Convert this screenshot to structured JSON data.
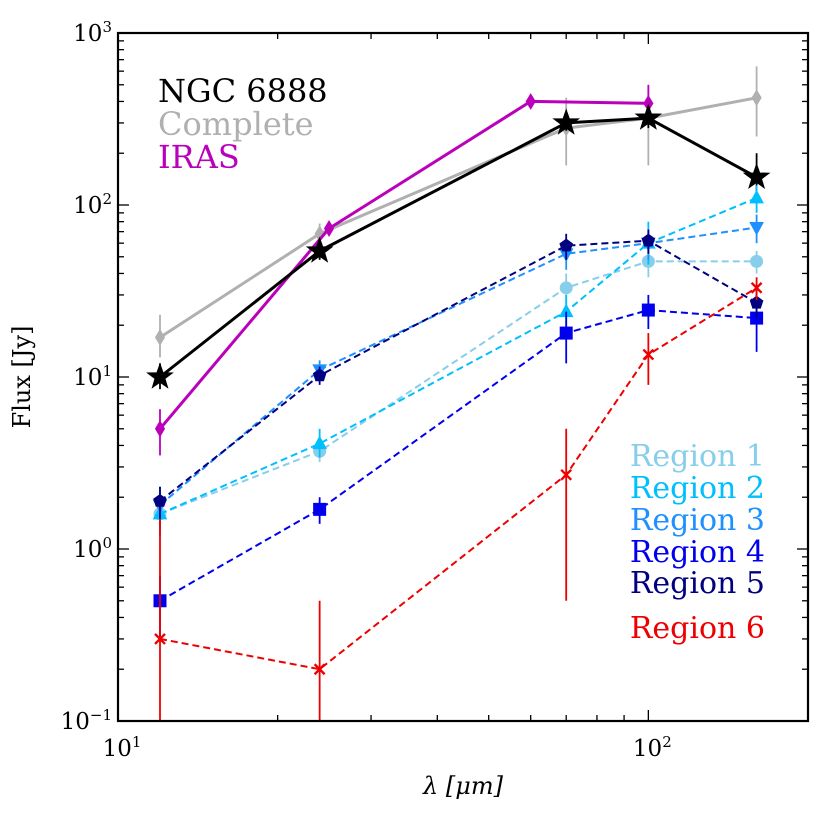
{
  "chart_data": {
    "type": "line",
    "title": "",
    "xlabel": "λ [μm]",
    "ylabel": "Flux [Jy]",
    "xscale": "log",
    "yscale": "log",
    "xlim": [
      10,
      200
    ],
    "ylim": [
      0.1,
      1000
    ],
    "x_ticks": [
      {
        "value": 10,
        "base": "10",
        "exp": "1"
      },
      {
        "value": 100,
        "base": "10",
        "exp": "2"
      }
    ],
    "y_ticks": [
      {
        "value": 0.1,
        "base": "10",
        "exp": "−1"
      },
      {
        "value": 1,
        "base": "10",
        "exp": "0"
      },
      {
        "value": 10,
        "base": "10",
        "exp": "1"
      },
      {
        "value": 100,
        "base": "10",
        "exp": "2"
      },
      {
        "value": 1000,
        "base": "10",
        "exp": "3"
      }
    ],
    "legend_top_left": [
      "NGC 6888",
      "Complete",
      "IRAS"
    ],
    "legend_bottom_right": [
      "Region 1",
      "Region 2",
      "Region 3",
      "Region 4",
      "Region 5",
      "Region 6"
    ],
    "series": [
      {
        "name": "Complete",
        "color": "#b0b0b0",
        "dash": false,
        "marker": "diamond",
        "x": [
          12,
          24,
          70,
          100,
          160
        ],
        "y": [
          17,
          68,
          280,
          320,
          420
        ],
        "err": [
          [
            13,
            23
          ],
          [
            60,
            78
          ],
          [
            170,
            420
          ],
          [
            170,
            490
          ],
          [
            250,
            640
          ]
        ]
      },
      {
        "name": "IRAS",
        "color": "#bb00bb",
        "dash": false,
        "marker": "diamond",
        "x": [
          12,
          25,
          60,
          100
        ],
        "y": [
          5,
          73,
          400,
          390
        ],
        "err": [
          [
            3.5,
            6.5
          ],
          [
            68,
            79
          ],
          [
            380,
            420
          ],
          [
            320,
            500
          ]
        ]
      },
      {
        "name": "NGC 6888",
        "color": "#000000",
        "dash": false,
        "marker": "star",
        "x": [
          12,
          24,
          70,
          100,
          160
        ],
        "y": [
          10,
          54,
          300,
          320,
          145
        ],
        "err": [
          [
            8.5,
            12
          ],
          [
            48,
            60
          ],
          [
            270,
            340
          ],
          [
            280,
            360
          ],
          [
            110,
            200
          ]
        ]
      },
      {
        "name": "Region 1",
        "color": "#87ceeb",
        "dash": true,
        "marker": "circle",
        "x": [
          12,
          24,
          70,
          100,
          160
        ],
        "y": [
          1.6,
          3.7,
          33,
          47,
          47
        ],
        "err": [
          [
            1.2,
            2.0
          ],
          [
            3.2,
            4.2
          ],
          [
            26,
            40
          ],
          [
            38,
            56
          ],
          [
            40,
            54
          ]
        ]
      },
      {
        "name": "Region 2",
        "color": "#00bfff",
        "dash": true,
        "marker": "triangle-up",
        "x": [
          12,
          24,
          70,
          100,
          160
        ],
        "y": [
          1.6,
          4.1,
          24,
          60,
          110
        ],
        "err": [
          [
            1.2,
            2.1
          ],
          [
            3.4,
            5.0
          ],
          [
            19,
            30
          ],
          [
            45,
            80
          ],
          [
            90,
            130
          ]
        ]
      },
      {
        "name": "Region 3",
        "color": "#1e90ff",
        "dash": true,
        "marker": "triangle-down",
        "x": [
          12,
          24,
          70,
          100,
          160
        ],
        "y": [
          1.8,
          11,
          52,
          60,
          74
        ],
        "err": [
          [
            1.3,
            2.3
          ],
          [
            9.5,
            12.5
          ],
          [
            42,
            62
          ],
          [
            48,
            72
          ],
          [
            60,
            88
          ]
        ]
      },
      {
        "name": "Region 4",
        "color": "#0000ee",
        "dash": true,
        "marker": "square",
        "x": [
          12,
          24,
          70,
          100,
          160
        ],
        "y": [
          0.5,
          1.7,
          18,
          24.5,
          22
        ],
        "err": [
          [
            0.3,
            0.7
          ],
          [
            1.4,
            2.0
          ],
          [
            12,
            24
          ],
          [
            19,
            30
          ],
          [
            14,
            30
          ]
        ]
      },
      {
        "name": "Region 5",
        "color": "#000080",
        "dash": true,
        "marker": "pentagon",
        "x": [
          12,
          24,
          70,
          100,
          160
        ],
        "y": [
          1.9,
          10.2,
          58,
          62,
          27
        ],
        "err": [
          [
            1.5,
            2.3
          ],
          [
            9.0,
            11.5
          ],
          [
            48,
            68
          ],
          [
            52,
            72
          ],
          [
            22,
            32
          ]
        ]
      },
      {
        "name": "Region 6",
        "color": "#ee0000",
        "dash": true,
        "marker": "x",
        "x": [
          12,
          24,
          70,
          100,
          160
        ],
        "y": [
          0.3,
          0.2,
          2.7,
          13.5,
          33
        ],
        "err": [
          [
            0.05,
            1.5
          ],
          [
            0.05,
            0.5
          ],
          [
            0.5,
            5.0
          ],
          [
            9,
            18
          ],
          [
            28,
            38
          ]
        ]
      }
    ]
  }
}
